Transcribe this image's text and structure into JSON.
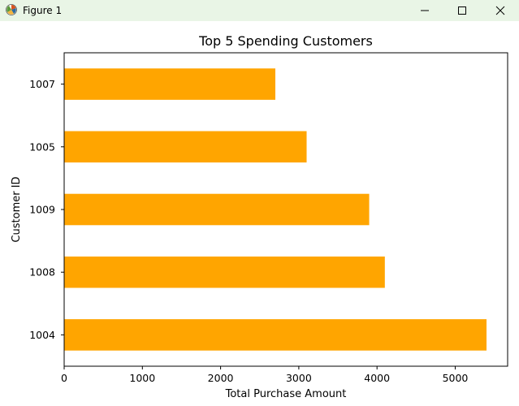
{
  "window": {
    "title": "Figure 1"
  },
  "icons": {
    "app": "matplotlib-figure-icon",
    "minimize": "minimize-icon",
    "maximize": "maximize-icon",
    "close": "close-icon"
  },
  "colors": {
    "bar": "#ffa500",
    "titlebar": "#e9f5e6"
  },
  "chart_data": {
    "type": "bar",
    "orientation": "horizontal",
    "title": "Top 5 Spending Customers",
    "xlabel": "Total Purchase Amount",
    "ylabel": "Customer ID",
    "categories": [
      "1004",
      "1008",
      "1009",
      "1005",
      "1007"
    ],
    "values": [
      5400,
      4100,
      3900,
      3100,
      2700
    ],
    "xlim": [
      0,
      5670
    ],
    "xticks": [
      0,
      1000,
      2000,
      3000,
      4000,
      5000
    ],
    "grid": false,
    "legend": "none"
  }
}
